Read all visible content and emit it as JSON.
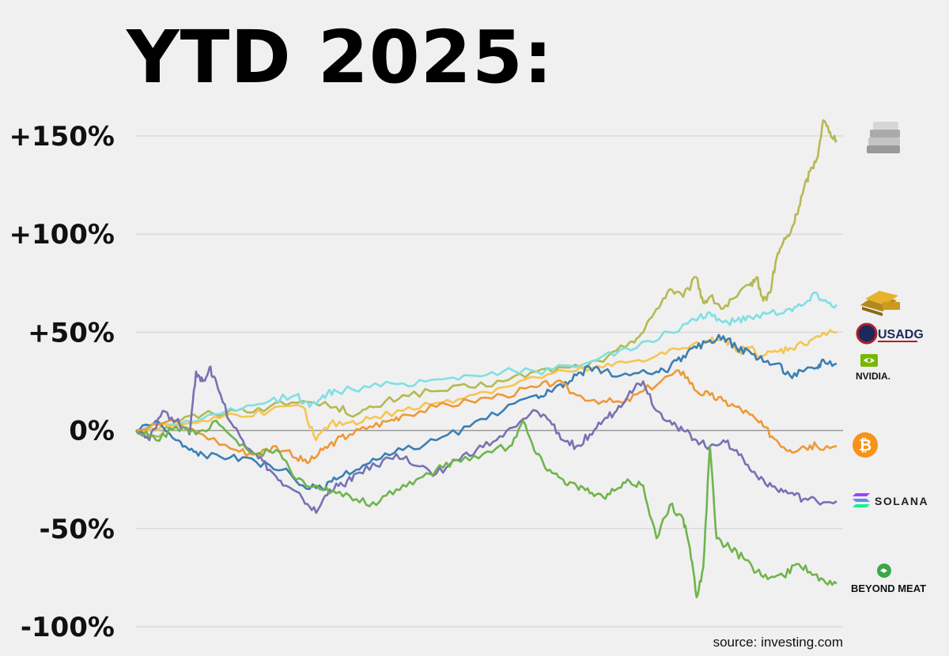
{
  "title": "YTD 2025:",
  "source_text": "source: investing.com",
  "chart_data": {
    "type": "line",
    "title": "YTD 2025:",
    "xlabel": "",
    "ylabel": "",
    "y_tick_labels": [
      "+150%",
      "+100%",
      "+50%",
      "0%",
      "-50%",
      "-100%"
    ],
    "y_ticks": [
      150,
      100,
      50,
      0,
      -50,
      -100
    ],
    "ylim": [
      -100,
      150
    ],
    "x_range": [
      0,
      100
    ],
    "grid": "horizontal",
    "legend": "right",
    "series": [
      {
        "icon": "silver-bars-icon",
        "color": "#b5b952",
        "points": [
          [
            0,
            0
          ],
          [
            3,
            -3
          ],
          [
            6,
            5
          ],
          [
            10,
            8
          ],
          [
            15,
            10
          ],
          [
            20,
            12
          ],
          [
            25,
            15
          ],
          [
            30,
            12
          ],
          [
            33,
            8
          ],
          [
            36,
            12
          ],
          [
            40,
            18
          ],
          [
            45,
            20
          ],
          [
            50,
            22
          ],
          [
            55,
            25
          ],
          [
            60,
            30
          ],
          [
            65,
            32
          ],
          [
            70,
            35
          ],
          [
            74,
            45
          ],
          [
            76,
            50
          ],
          [
            78,
            62
          ],
          [
            80,
            72
          ],
          [
            82,
            68
          ],
          [
            84,
            78
          ],
          [
            85,
            65
          ],
          [
            86,
            68
          ],
          [
            88,
            62
          ],
          [
            90,
            68
          ],
          [
            92,
            74
          ],
          [
            93,
            78
          ],
          [
            94,
            66
          ],
          [
            95,
            70
          ],
          [
            96,
            88
          ],
          [
            97,
            96
          ],
          [
            98,
            100
          ],
          [
            99,
            110
          ],
          [
            100,
            122
          ],
          [
            101,
            132
          ],
          [
            102,
            138
          ],
          [
            103,
            158
          ],
          [
            104,
            152
          ],
          [
            105,
            148
          ]
        ]
      },
      {
        "icon": "gold-bars-icon",
        "color": "#7fe0e3",
        "points": [
          [
            0,
            0
          ],
          [
            5,
            3
          ],
          [
            10,
            6
          ],
          [
            15,
            10
          ],
          [
            20,
            15
          ],
          [
            24,
            18
          ],
          [
            26,
            12
          ],
          [
            28,
            18
          ],
          [
            30,
            20
          ],
          [
            35,
            22
          ],
          [
            40,
            24
          ],
          [
            45,
            26
          ],
          [
            50,
            28
          ],
          [
            55,
            30
          ],
          [
            60,
            30
          ],
          [
            65,
            33
          ],
          [
            70,
            38
          ],
          [
            75,
            42
          ],
          [
            80,
            50
          ],
          [
            84,
            56
          ],
          [
            86,
            60
          ],
          [
            88,
            55
          ],
          [
            90,
            56
          ],
          [
            92,
            58
          ],
          [
            95,
            60
          ],
          [
            98,
            62
          ],
          [
            100,
            64
          ],
          [
            102,
            70
          ],
          [
            103,
            66
          ],
          [
            105,
            64
          ]
        ]
      },
      {
        "icon": "usadg-logo-icon",
        "color": "#f6c553",
        "points": [
          [
            0,
            0
          ],
          [
            5,
            2
          ],
          [
            10,
            5
          ],
          [
            15,
            8
          ],
          [
            20,
            10
          ],
          [
            25,
            12
          ],
          [
            27,
            -5
          ],
          [
            29,
            3
          ],
          [
            32,
            4
          ],
          [
            35,
            6
          ],
          [
            40,
            10
          ],
          [
            45,
            14
          ],
          [
            50,
            18
          ],
          [
            55,
            22
          ],
          [
            60,
            27
          ],
          [
            65,
            30
          ],
          [
            70,
            32
          ],
          [
            74,
            35
          ],
          [
            78,
            38
          ],
          [
            82,
            42
          ],
          [
            86,
            45
          ],
          [
            88,
            48
          ],
          [
            90,
            40
          ],
          [
            92,
            42
          ],
          [
            94,
            38
          ],
          [
            96,
            40
          ],
          [
            98,
            42
          ],
          [
            100,
            44
          ],
          [
            102,
            48
          ],
          [
            105,
            50
          ]
        ]
      },
      {
        "icon": "nvidia-logo-icon",
        "color": "#3a7fb4",
        "points": [
          [
            0,
            0
          ],
          [
            3,
            5
          ],
          [
            6,
            -5
          ],
          [
            8,
            -10
          ],
          [
            10,
            -12
          ],
          [
            14,
            -14
          ],
          [
            18,
            -16
          ],
          [
            22,
            -20
          ],
          [
            25,
            -28
          ],
          [
            28,
            -30
          ],
          [
            30,
            -25
          ],
          [
            33,
            -20
          ],
          [
            36,
            -15
          ],
          [
            40,
            -10
          ],
          [
            45,
            -5
          ],
          [
            50,
            2
          ],
          [
            55,
            10
          ],
          [
            60,
            18
          ],
          [
            62,
            20
          ],
          [
            64,
            22
          ],
          [
            66,
            28
          ],
          [
            68,
            32
          ],
          [
            70,
            30
          ],
          [
            74,
            28
          ],
          [
            78,
            30
          ],
          [
            80,
            32
          ],
          [
            82,
            38
          ],
          [
            84,
            42
          ],
          [
            86,
            46
          ],
          [
            88,
            48
          ],
          [
            90,
            42
          ],
          [
            92,
            40
          ],
          [
            94,
            35
          ],
          [
            96,
            34
          ],
          [
            98,
            28
          ],
          [
            100,
            30
          ],
          [
            102,
            32
          ],
          [
            103,
            36
          ],
          [
            105,
            34
          ]
        ]
      },
      {
        "icon": "bitcoin-logo-icon",
        "color": "#ee9938",
        "points": [
          [
            0,
            0
          ],
          [
            5,
            5
          ],
          [
            10,
            -2
          ],
          [
            15,
            -10
          ],
          [
            18,
            -12
          ],
          [
            21,
            -8
          ],
          [
            24,
            -14
          ],
          [
            26,
            -16
          ],
          [
            28,
            -10
          ],
          [
            30,
            -5
          ],
          [
            32,
            -2
          ],
          [
            35,
            2
          ],
          [
            38,
            5
          ],
          [
            40,
            8
          ],
          [
            45,
            12
          ],
          [
            50,
            15
          ],
          [
            55,
            18
          ],
          [
            60,
            22
          ],
          [
            63,
            25
          ],
          [
            66,
            18
          ],
          [
            70,
            15
          ],
          [
            73,
            14
          ],
          [
            76,
            20
          ],
          [
            80,
            28
          ],
          [
            82,
            30
          ],
          [
            84,
            20
          ],
          [
            86,
            18
          ],
          [
            88,
            15
          ],
          [
            90,
            12
          ],
          [
            92,
            8
          ],
          [
            94,
            2
          ],
          [
            96,
            -5
          ],
          [
            98,
            -10
          ],
          [
            100,
            -8
          ],
          [
            102,
            -8
          ],
          [
            105,
            -8
          ]
        ]
      },
      {
        "icon": "solana-logo-icon",
        "color": "#7771b5",
        "points": [
          [
            0,
            0
          ],
          [
            2,
            -5
          ],
          [
            4,
            10
          ],
          [
            6,
            5
          ],
          [
            8,
            -2
          ],
          [
            9,
            30
          ],
          [
            10,
            25
          ],
          [
            11,
            32
          ],
          [
            12,
            25
          ],
          [
            14,
            5
          ],
          [
            16,
            -5
          ],
          [
            18,
            -12
          ],
          [
            20,
            -20
          ],
          [
            22,
            -28
          ],
          [
            25,
            -35
          ],
          [
            27,
            -42
          ],
          [
            29,
            -30
          ],
          [
            31,
            -28
          ],
          [
            33,
            -22
          ],
          [
            36,
            -18
          ],
          [
            39,
            -12
          ],
          [
            42,
            -18
          ],
          [
            45,
            -22
          ],
          [
            48,
            -15
          ],
          [
            51,
            -10
          ],
          [
            54,
            -5
          ],
          [
            57,
            2
          ],
          [
            60,
            10
          ],
          [
            62,
            5
          ],
          [
            64,
            -5
          ],
          [
            66,
            -8
          ],
          [
            68,
            -2
          ],
          [
            70,
            5
          ],
          [
            72,
            10
          ],
          [
            74,
            20
          ],
          [
            76,
            25
          ],
          [
            78,
            10
          ],
          [
            80,
            5
          ],
          [
            82,
            0
          ],
          [
            84,
            -5
          ],
          [
            86,
            -8
          ],
          [
            88,
            -5
          ],
          [
            90,
            -10
          ],
          [
            92,
            -20
          ],
          [
            94,
            -25
          ],
          [
            96,
            -30
          ],
          [
            98,
            -32
          ],
          [
            100,
            -35
          ],
          [
            102,
            -36
          ],
          [
            105,
            -36
          ]
        ]
      },
      {
        "icon": "beyond-meat-logo-icon",
        "color": "#6fb44d",
        "points": [
          [
            0,
            0
          ],
          [
            3,
            -5
          ],
          [
            6,
            2
          ],
          [
            9,
            -2
          ],
          [
            12,
            5
          ],
          [
            15,
            -5
          ],
          [
            18,
            -12
          ],
          [
            21,
            -10
          ],
          [
            24,
            -25
          ],
          [
            27,
            -28
          ],
          [
            30,
            -32
          ],
          [
            33,
            -35
          ],
          [
            36,
            -38
          ],
          [
            39,
            -30
          ],
          [
            42,
            -25
          ],
          [
            45,
            -20
          ],
          [
            48,
            -15
          ],
          [
            52,
            -12
          ],
          [
            56,
            -8
          ],
          [
            58,
            5
          ],
          [
            60,
            -12
          ],
          [
            62,
            -20
          ],
          [
            64,
            -25
          ],
          [
            66,
            -28
          ],
          [
            68,
            -32
          ],
          [
            70,
            -34
          ],
          [
            72,
            -30
          ],
          [
            74,
            -26
          ],
          [
            76,
            -28
          ],
          [
            78,
            -55
          ],
          [
            80,
            -38
          ],
          [
            82,
            -45
          ],
          [
            83,
            -60
          ],
          [
            84,
            -85
          ],
          [
            85,
            -70
          ],
          [
            86,
            -8
          ],
          [
            87,
            -55
          ],
          [
            89,
            -60
          ],
          [
            91,
            -65
          ],
          [
            93,
            -72
          ],
          [
            95,
            -75
          ],
          [
            97,
            -74
          ],
          [
            99,
            -68
          ],
          [
            101,
            -72
          ],
          [
            103,
            -76
          ],
          [
            105,
            -78
          ]
        ]
      }
    ]
  }
}
